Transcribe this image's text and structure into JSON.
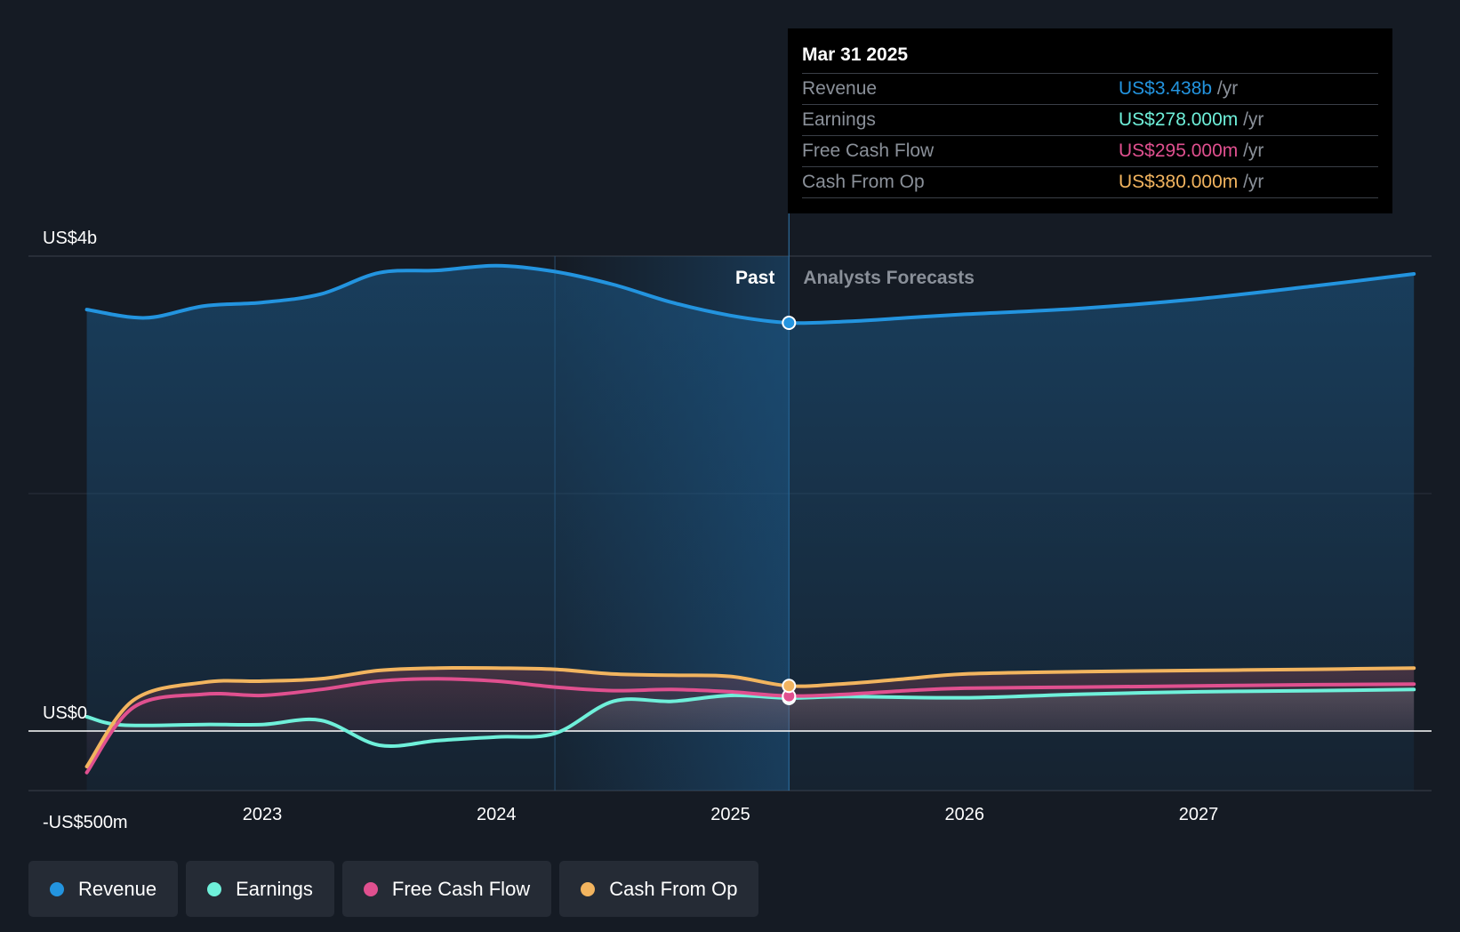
{
  "chart_data": {
    "type": "area",
    "y_tick_labels": [
      "US$4b",
      "US$0",
      "-US$500m"
    ],
    "x_tick_labels": [
      "2023",
      "2024",
      "2025",
      "2026",
      "2027"
    ],
    "ylim": [
      -500,
      4000
    ],
    "x_range": [
      2022.25,
      2027.92
    ],
    "past_label": "Past",
    "forecast_label": "Analysts Forecasts",
    "divider_x": 2025.25,
    "series": [
      {
        "name": "Revenue",
        "color": "#2394df",
        "points": [
          [
            2022.25,
            3550
          ],
          [
            2022.5,
            3480
          ],
          [
            2022.75,
            3580
          ],
          [
            2023.0,
            3610
          ],
          [
            2023.25,
            3680
          ],
          [
            2023.5,
            3860
          ],
          [
            2023.75,
            3880
          ],
          [
            2024.0,
            3920
          ],
          [
            2024.25,
            3870
          ],
          [
            2024.5,
            3760
          ],
          [
            2024.75,
            3610
          ],
          [
            2025.0,
            3500
          ],
          [
            2025.25,
            3438
          ],
          [
            2025.5,
            3450
          ],
          [
            2025.75,
            3480
          ],
          [
            2026.0,
            3510
          ],
          [
            2026.5,
            3560
          ],
          [
            2027.0,
            3640
          ],
          [
            2027.5,
            3750
          ],
          [
            2027.92,
            3850
          ]
        ]
      },
      {
        "name": "Earnings",
        "color": "#6ff0da",
        "points": [
          [
            2022.25,
            120
          ],
          [
            2022.4,
            50
          ],
          [
            2022.75,
            55
          ],
          [
            2023.0,
            55
          ],
          [
            2023.25,
            90
          ],
          [
            2023.5,
            -120
          ],
          [
            2023.75,
            -80
          ],
          [
            2024.0,
            -50
          ],
          [
            2024.25,
            -20
          ],
          [
            2024.5,
            250
          ],
          [
            2024.75,
            250
          ],
          [
            2025.0,
            300
          ],
          [
            2025.25,
            278
          ],
          [
            2025.5,
            290
          ],
          [
            2026.0,
            280
          ],
          [
            2026.5,
            310
          ],
          [
            2027.0,
            330
          ],
          [
            2027.5,
            340
          ],
          [
            2027.92,
            350
          ]
        ]
      },
      {
        "name": "Free Cash Flow",
        "color": "#e0508f",
        "points": [
          [
            2022.25,
            -350
          ],
          [
            2022.45,
            200
          ],
          [
            2022.75,
            310
          ],
          [
            2023.0,
            300
          ],
          [
            2023.25,
            350
          ],
          [
            2023.5,
            420
          ],
          [
            2023.75,
            440
          ],
          [
            2024.0,
            420
          ],
          [
            2024.25,
            370
          ],
          [
            2024.5,
            340
          ],
          [
            2024.75,
            350
          ],
          [
            2025.0,
            330
          ],
          [
            2025.25,
            295
          ],
          [
            2025.5,
            310
          ],
          [
            2025.75,
            340
          ],
          [
            2026.0,
            360
          ],
          [
            2026.5,
            370
          ],
          [
            2027.0,
            380
          ],
          [
            2027.5,
            390
          ],
          [
            2027.92,
            395
          ]
        ]
      },
      {
        "name": "Cash From Op",
        "color": "#f2b45f",
        "points": [
          [
            2022.25,
            -300
          ],
          [
            2022.45,
            260
          ],
          [
            2022.75,
            410
          ],
          [
            2023.0,
            420
          ],
          [
            2023.25,
            440
          ],
          [
            2023.5,
            510
          ],
          [
            2023.75,
            530
          ],
          [
            2024.0,
            530
          ],
          [
            2024.25,
            520
          ],
          [
            2024.5,
            480
          ],
          [
            2024.75,
            470
          ],
          [
            2025.0,
            460
          ],
          [
            2025.25,
            380
          ],
          [
            2025.5,
            400
          ],
          [
            2025.75,
            440
          ],
          [
            2026.0,
            480
          ],
          [
            2026.5,
            500
          ],
          [
            2027.0,
            510
          ],
          [
            2027.5,
            520
          ],
          [
            2027.92,
            530
          ]
        ]
      }
    ]
  },
  "tooltip": {
    "date": "Mar 31 2025",
    "unit": "/yr",
    "rows": [
      {
        "label": "Revenue",
        "value": "US$3.438b",
        "color": "#2394df"
      },
      {
        "label": "Earnings",
        "value": "US$278.000m",
        "color": "#6ff0da"
      },
      {
        "label": "Free Cash Flow",
        "value": "US$295.000m",
        "color": "#e0508f"
      },
      {
        "label": "Cash From Op",
        "value": "US$380.000m",
        "color": "#f2b45f"
      }
    ]
  },
  "legend": [
    {
      "label": "Revenue",
      "color": "#2394df"
    },
    {
      "label": "Earnings",
      "color": "#6ff0da"
    },
    {
      "label": "Free Cash Flow",
      "color": "#e0508f"
    },
    {
      "label": "Cash From Op",
      "color": "#f2b45f"
    }
  ]
}
